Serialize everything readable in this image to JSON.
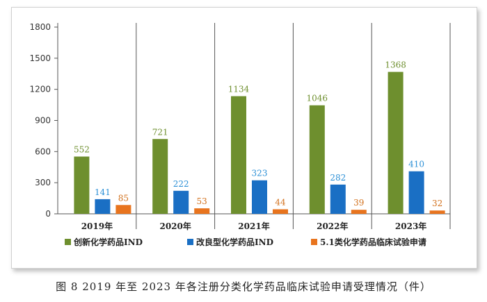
{
  "caption": "图 8   2019 年至 2023 年各注册分类化学药品临床试验申请受理情况（件）",
  "chart_data": {
    "type": "bar",
    "categories": [
      "2019年",
      "2020年",
      "2021年",
      "2022年",
      "2023年"
    ],
    "series": [
      {
        "name": "创新化学药品IND",
        "values": [
          552,
          721,
          1134,
          1046,
          1368
        ],
        "color": "#6e8f2e",
        "label_color": "#6e8f2e"
      },
      {
        "name": "改良型化学药品IND",
        "values": [
          141,
          222,
          323,
          282,
          410
        ],
        "color": "#1a6fc4",
        "label_color": "#2a8fd6"
      },
      {
        "name": "5.1类化学药品临床试验申请",
        "values": [
          85,
          53,
          44,
          39,
          32
        ],
        "color": "#e8741e",
        "label_color": "#d2701c"
      }
    ],
    "y_ticks": [
      0,
      300,
      600,
      900,
      1200,
      1500,
      1800
    ],
    "ylim": [
      0,
      1800
    ],
    "legend_position": "bottom",
    "grid": false,
    "category_separators": true
  }
}
